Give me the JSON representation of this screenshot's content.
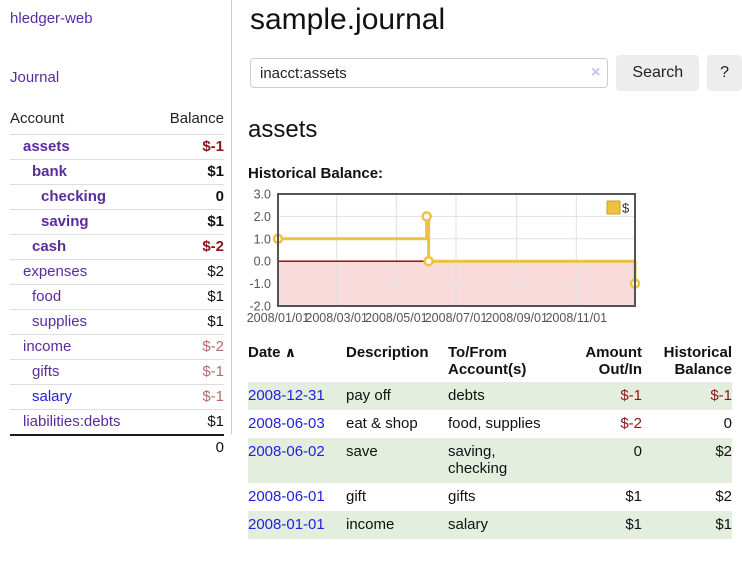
{
  "colors": {
    "purple_link": "#5b2c9e",
    "blue_link": "#2121de",
    "neg_strong": "#8b1717",
    "neg_soft": "#b56b6b",
    "row_green": "#e3eedf"
  },
  "sidebar": {
    "brand": "hledger-web",
    "journal_label": "Journal",
    "accounts": {
      "headers": {
        "account": "Account",
        "balance": "Balance"
      },
      "rows": [
        {
          "name": "assets",
          "depth": 1,
          "bold": true,
          "balance": "$-1",
          "balance_tone": "neg-strong",
          "name_tone": "purple"
        },
        {
          "name": "bank",
          "depth": 2,
          "bold": true,
          "balance": "$1",
          "balance_tone": "normal",
          "name_tone": "purple"
        },
        {
          "name": "checking",
          "depth": 3,
          "bold": true,
          "balance": "0",
          "balance_tone": "normal",
          "name_tone": "purple"
        },
        {
          "name": "saving",
          "depth": 3,
          "bold": true,
          "balance": "$1",
          "balance_tone": "normal",
          "name_tone": "purple"
        },
        {
          "name": "cash",
          "depth": 2,
          "bold": true,
          "balance": "$-2",
          "balance_tone": "neg-strong",
          "name_tone": "purple"
        },
        {
          "name": "expenses",
          "depth": 1,
          "bold": false,
          "balance": "$2",
          "balance_tone": "normal",
          "name_tone": "purple"
        },
        {
          "name": "food",
          "depth": 2,
          "bold": false,
          "balance": "$1",
          "balance_tone": "normal",
          "name_tone": "purple"
        },
        {
          "name": "supplies",
          "depth": 2,
          "bold": false,
          "balance": "$1",
          "balance_tone": "normal",
          "name_tone": "purple"
        },
        {
          "name": "income",
          "depth": 1,
          "bold": false,
          "balance": "$-2",
          "balance_tone": "neg-soft",
          "name_tone": "purple"
        },
        {
          "name": "gifts",
          "depth": 2,
          "bold": false,
          "balance": "$-1",
          "balance_tone": "neg-soft",
          "name_tone": "purple"
        },
        {
          "name": "salary",
          "depth": 2,
          "bold": false,
          "balance": "$-1",
          "balance_tone": "neg-soft",
          "name_tone": "blue"
        },
        {
          "name": "liabilities:debts",
          "depth": 1,
          "bold": false,
          "balance": "$1",
          "balance_tone": "normal",
          "name_tone": "purple"
        }
      ],
      "total": "0"
    }
  },
  "main": {
    "title": "sample.journal",
    "search": {
      "value": "inacct:assets",
      "clear_icon": "×",
      "button_label": "Search",
      "help_label": "?"
    },
    "account_heading": "assets",
    "chart_label": "Historical Balance:"
  },
  "chart_data": {
    "type": "line",
    "step": true,
    "title": "Historical Balance of assets",
    "x_range": [
      "2008-01-01",
      "2008-12-31"
    ],
    "ylim": [
      -2,
      3
    ],
    "grid": true,
    "legend": {
      "label": "$",
      "position": "top-right"
    },
    "y_ticks": [
      {
        "value": 3,
        "label": "3.0"
      },
      {
        "value": 2,
        "label": "2.0"
      },
      {
        "value": 1,
        "label": "1.0"
      },
      {
        "value": 0,
        "label": "0.0"
      },
      {
        "value": -1,
        "label": "-1.0"
      },
      {
        "value": -2,
        "label": "-2.0"
      }
    ],
    "x_ticks": [
      {
        "date": "2008-01-01",
        "label": "2008/01/01"
      },
      {
        "date": "2008-03-01",
        "label": "2008/03/01"
      },
      {
        "date": "2008-05-01",
        "label": "2008/05/01"
      },
      {
        "date": "2008-07-01",
        "label": "2008/07/01"
      },
      {
        "date": "2008-09-01",
        "label": "2008/09/01"
      },
      {
        "date": "2008-11-01",
        "label": "2008/11/01"
      }
    ],
    "series": [
      {
        "name": "$",
        "color": "#edc240",
        "points": [
          [
            "2008-01-01",
            1
          ],
          [
            "2008-06-01",
            2
          ],
          [
            "2008-06-03",
            0
          ],
          [
            "2008-12-31",
            -1
          ]
        ]
      }
    ],
    "zero_line_color": "#800000",
    "negative_region_color": "#f9dbdb",
    "grid_color": "#e0e0e0",
    "border_color": "#545454",
    "tick_text_color": "#545454"
  },
  "register": {
    "sort_icon": "∧",
    "headers": {
      "date": "Date",
      "description": "Description",
      "account": "To/From Account(s)",
      "amount": "Amount Out/In",
      "balance": "Historical Balance"
    },
    "rows": [
      {
        "date": "2008-12-31",
        "description": "pay off",
        "accounts": "debts",
        "amount": "$-1",
        "balance": "$-1"
      },
      {
        "date": "2008-06-03",
        "description": "eat & shop",
        "accounts": "food, supplies",
        "amount": "$-2",
        "balance": "0"
      },
      {
        "date": "2008-06-02",
        "description": "save",
        "accounts": "saving, checking",
        "amount": "0",
        "balance": "$2"
      },
      {
        "date": "2008-06-01",
        "description": "gift",
        "accounts": "gifts",
        "amount": "$1",
        "balance": "$2"
      },
      {
        "date": "2008-01-01",
        "description": "income",
        "accounts": "salary",
        "amount": "$1",
        "balance": "$1"
      }
    ]
  }
}
